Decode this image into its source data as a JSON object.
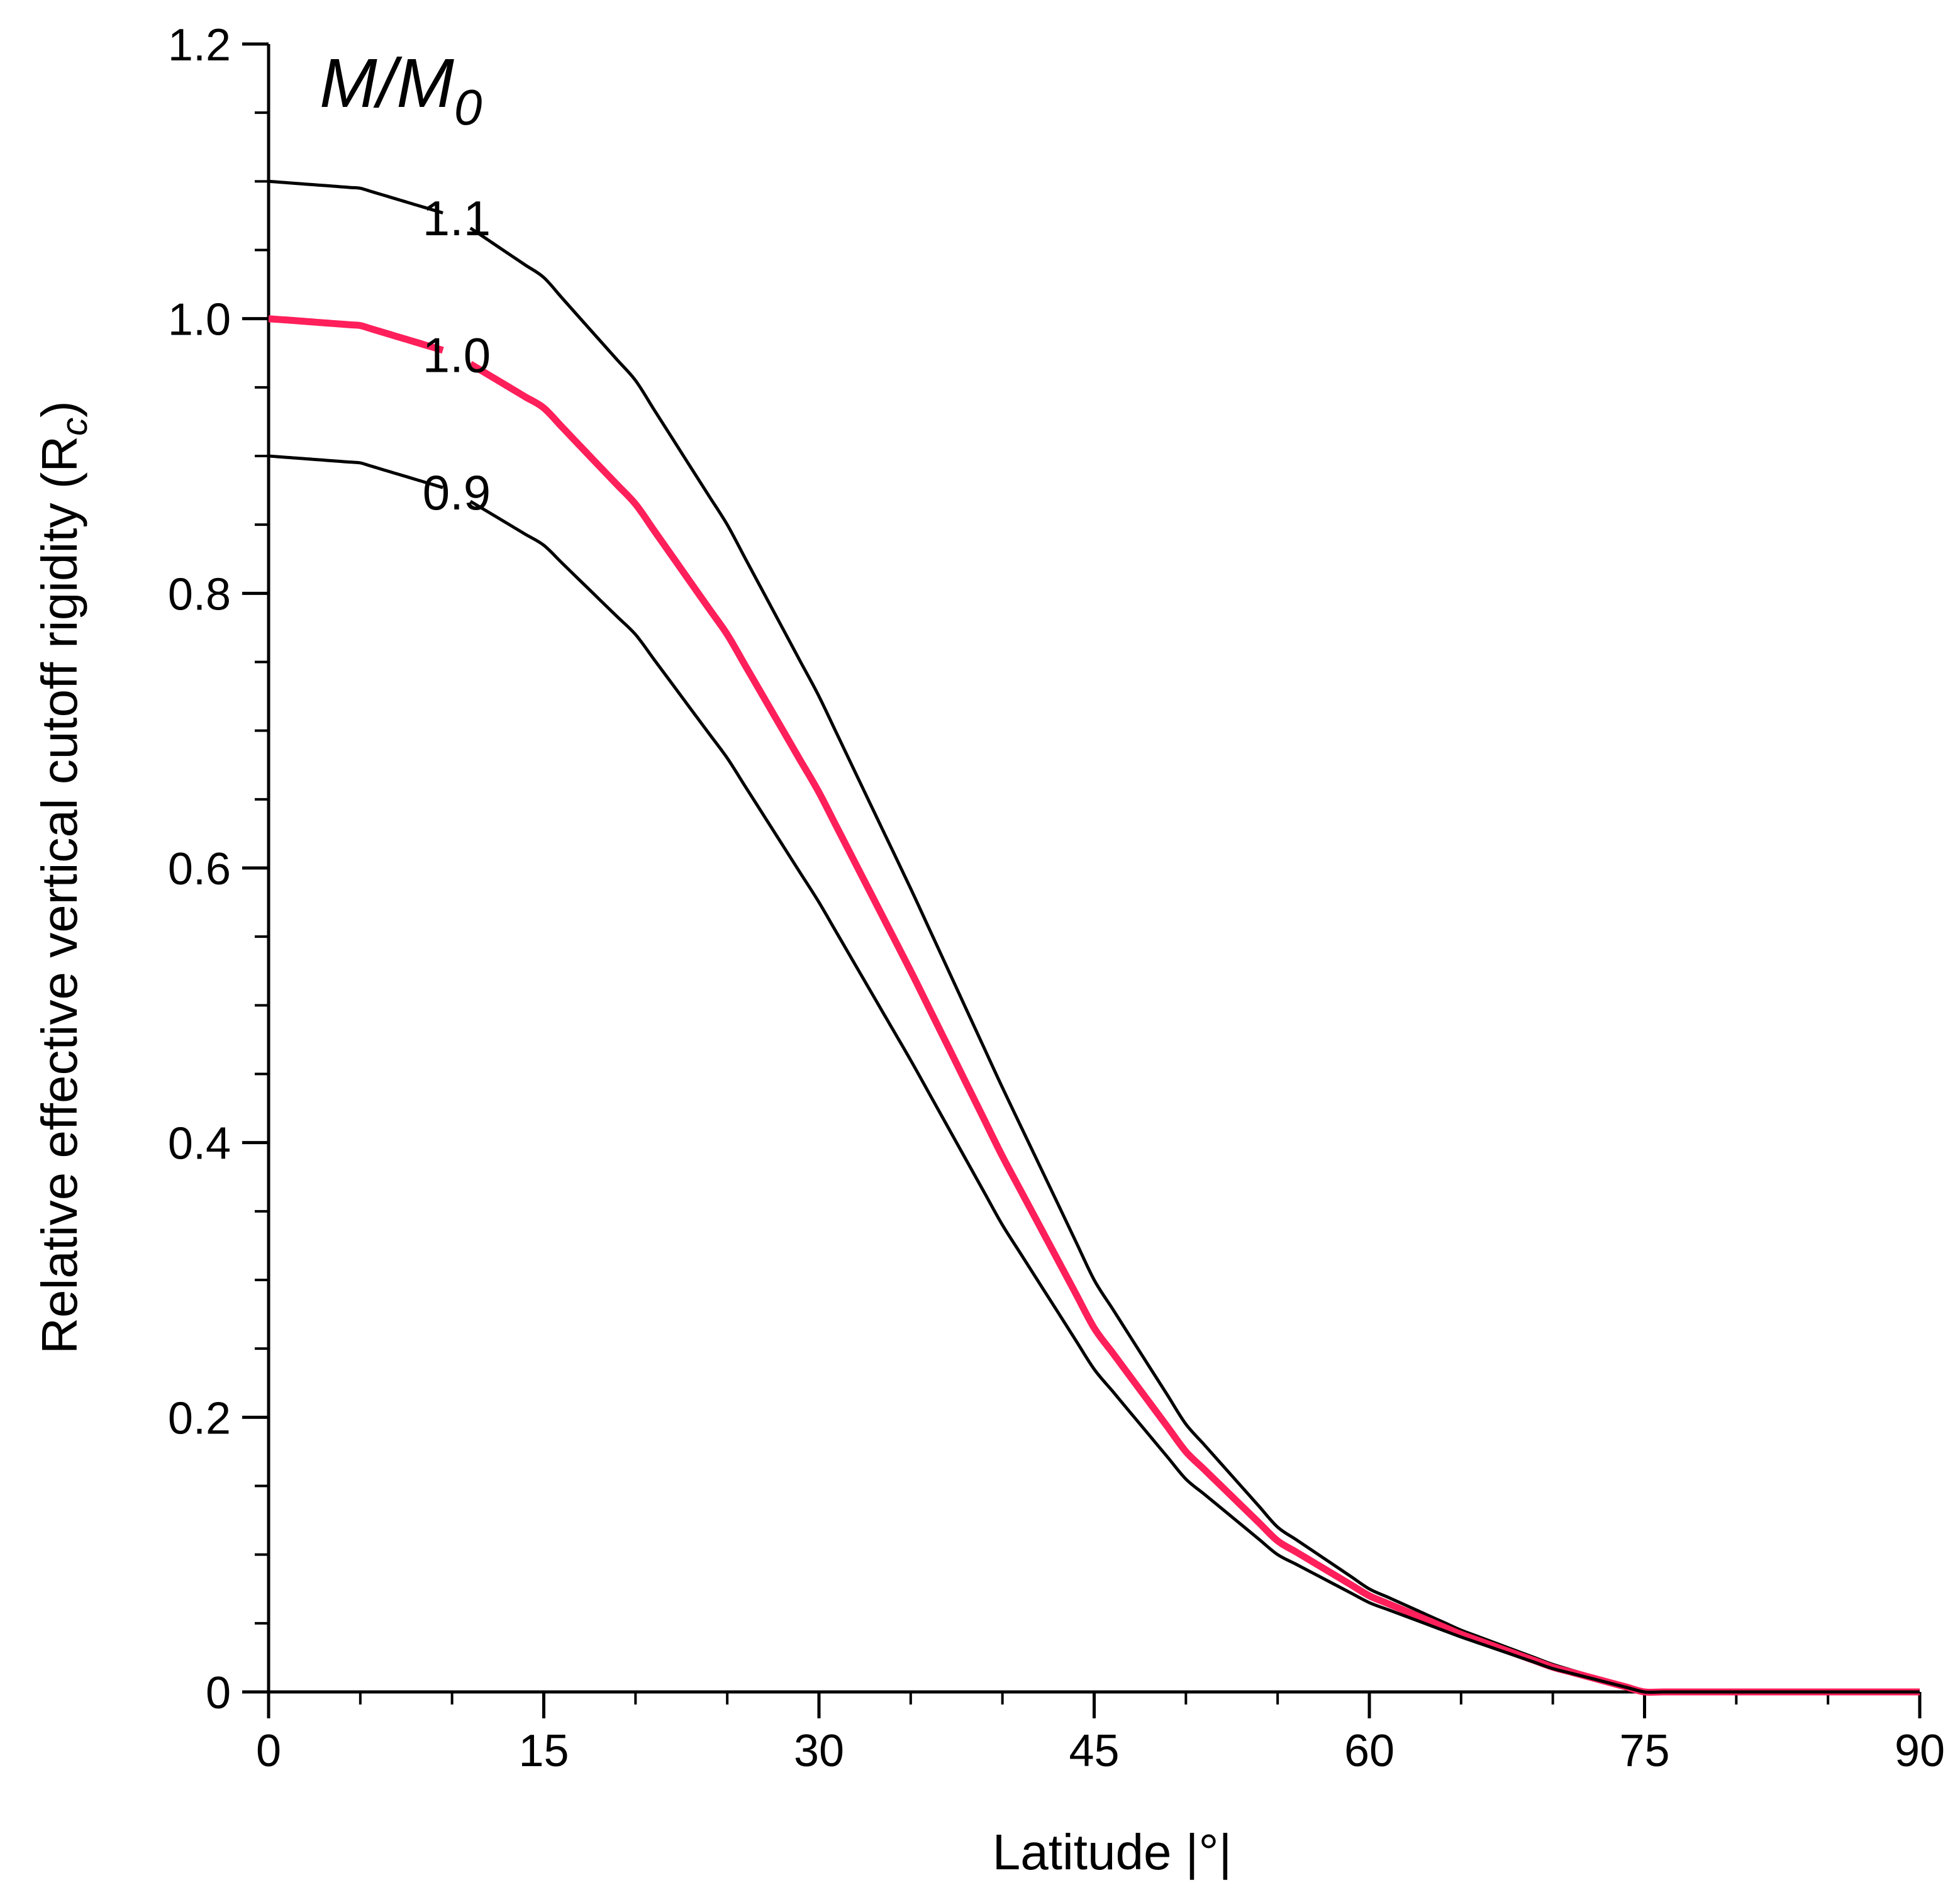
{
  "chart_data": {
    "type": "line",
    "title": "M/M0",
    "title_main": "M/M",
    "title_sub": "0",
    "xlabel": "Latitude |°|",
    "ylabel": "Relative effective vertical cutoff rigidity (R",
    "ylabel_sub": "c",
    "ylabel_close": ")",
    "xlim": [
      0,
      90
    ],
    "ylim": [
      0,
      1.2
    ],
    "xticks": [
      0,
      15,
      30,
      45,
      60,
      75,
      90
    ],
    "xtick_labels": [
      "0",
      "15",
      "30",
      "45",
      "60",
      "75",
      "90"
    ],
    "yticks": [
      0,
      0.2,
      0.4,
      0.6,
      0.8,
      1.0,
      1.2
    ],
    "ytick_labels": [
      "0",
      "0.2",
      "0.4",
      "0.6",
      "0.8",
      "1.0",
      "1.2"
    ],
    "x_minor_step": 5,
    "y_minor_step": 0.05,
    "x": [
      0,
      5,
      10,
      15,
      20,
      25,
      30,
      35,
      40,
      45,
      50,
      55,
      60,
      65,
      70,
      75,
      80,
      85,
      90
    ],
    "series": [
      {
        "name": "1.1",
        "label": "1.1",
        "color": "#000000",
        "values": [
          1.1,
          1.095,
          1.075,
          1.03,
          0.955,
          0.85,
          0.725,
          0.585,
          0.44,
          0.3,
          0.195,
          0.12,
          0.075,
          0.045,
          0.02,
          0.0,
          0.0,
          0.0,
          0.0
        ]
      },
      {
        "name": "1.0",
        "label": "1.0",
        "color": "#ff1f5a",
        "values": [
          1.0,
          0.995,
          0.975,
          0.935,
          0.865,
          0.77,
          0.655,
          0.525,
          0.39,
          0.265,
          0.175,
          0.11,
          0.07,
          0.042,
          0.018,
          0.0,
          0.0,
          0.0,
          0.0
        ]
      },
      {
        "name": "0.9",
        "label": "0.9",
        "color": "#000000",
        "values": [
          0.9,
          0.895,
          0.875,
          0.835,
          0.77,
          0.68,
          0.575,
          0.46,
          0.34,
          0.235,
          0.155,
          0.1,
          0.065,
          0.04,
          0.017,
          0.0,
          0.0,
          0.0,
          0.0
        ]
      }
    ]
  }
}
